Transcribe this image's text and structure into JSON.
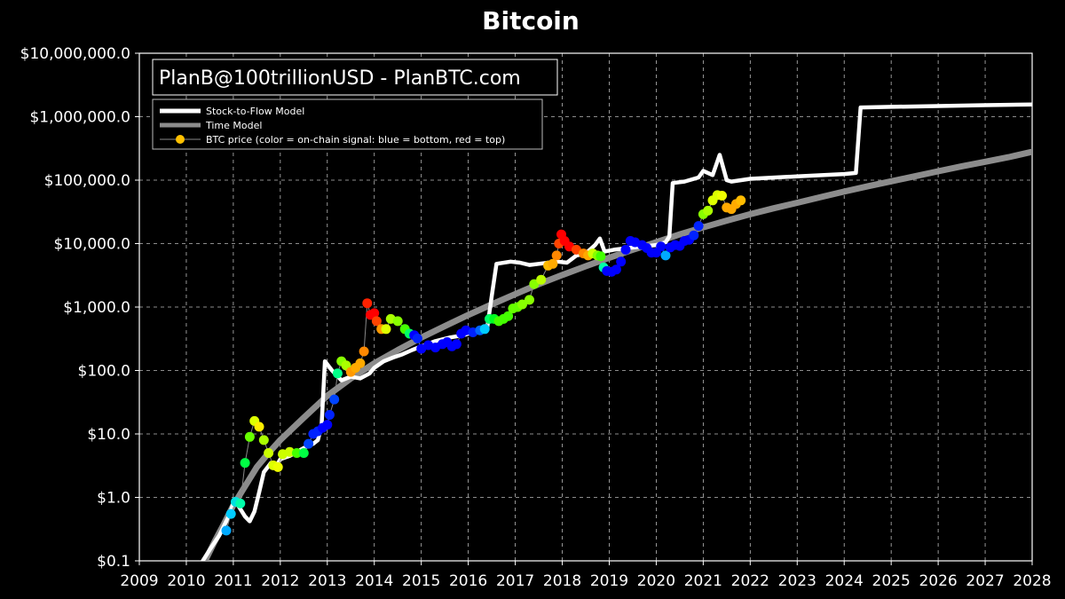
{
  "chart_data": {
    "type": "line",
    "title": "Bitcoin",
    "xlabel": "",
    "ylabel": "",
    "y_scale": "log",
    "xlim": [
      2009,
      2028
    ],
    "ylim": [
      0.1,
      10000000
    ],
    "x_ticks": [
      "2009",
      "2010",
      "2011",
      "2012",
      "2013",
      "2014",
      "2015",
      "2016",
      "2017",
      "2018",
      "2019",
      "2020",
      "2021",
      "2022",
      "2023",
      "2024",
      "2025",
      "2026",
      "2027",
      "2028"
    ],
    "y_ticks": [
      "$0.1",
      "$1.0",
      "$10.0",
      "$100.0",
      "$1,000.0",
      "$10,000.0",
      "$100,000.0",
      "$1,000,000.0",
      "$10,000,000.0"
    ],
    "grid": true,
    "legend_position": "top-left",
    "annotation": "PlanB@100trillionUSD - PlanBTC.com",
    "series": [
      {
        "name": "Stock-to-Flow Model",
        "color": "#ffffff",
        "points": [
          [
            2010.35,
            0.1
          ],
          [
            2010.5,
            0.15
          ],
          [
            2010.7,
            0.25
          ],
          [
            2010.9,
            0.5
          ],
          [
            2011.0,
            0.8
          ],
          [
            2011.1,
            0.75
          ],
          [
            2011.25,
            0.5
          ],
          [
            2011.35,
            0.42
          ],
          [
            2011.45,
            0.6
          ],
          [
            2011.55,
            1.2
          ],
          [
            2011.65,
            2.5
          ],
          [
            2011.8,
            3.5
          ],
          [
            2011.9,
            3.0
          ],
          [
            2012.0,
            4.0
          ],
          [
            2012.2,
            4.5
          ],
          [
            2012.5,
            6
          ],
          [
            2012.7,
            7
          ],
          [
            2012.8,
            8
          ],
          [
            2012.88,
            14
          ],
          [
            2012.95,
            140
          ],
          [
            2013.1,
            100
          ],
          [
            2013.3,
            70
          ],
          [
            2013.5,
            80
          ],
          [
            2013.7,
            75
          ],
          [
            2013.9,
            90
          ],
          [
            2014.0,
            110
          ],
          [
            2014.2,
            140
          ],
          [
            2014.4,
            160
          ],
          [
            2014.6,
            180
          ],
          [
            2014.8,
            210
          ],
          [
            2015.0,
            240
          ],
          [
            2015.3,
            290
          ],
          [
            2015.6,
            330
          ],
          [
            2015.9,
            360
          ],
          [
            2016.1,
            400
          ],
          [
            2016.4,
            450
          ],
          [
            2016.5,
            1500
          ],
          [
            2016.6,
            4800
          ],
          [
            2016.9,
            5200
          ],
          [
            2017.1,
            5000
          ],
          [
            2017.3,
            4600
          ],
          [
            2017.5,
            4800
          ],
          [
            2017.7,
            5000
          ],
          [
            2017.9,
            5200
          ],
          [
            2018.1,
            5000
          ],
          [
            2018.3,
            6500
          ],
          [
            2018.5,
            7000
          ],
          [
            2018.7,
            9500
          ],
          [
            2018.8,
            12000
          ],
          [
            2018.9,
            7500
          ],
          [
            2019.1,
            8000
          ],
          [
            2019.4,
            8500
          ],
          [
            2019.7,
            9000
          ],
          [
            2020.0,
            9500
          ],
          [
            2020.2,
            10500
          ],
          [
            2020.28,
            13000
          ],
          [
            2020.35,
            90000
          ],
          [
            2020.6,
            95000
          ],
          [
            2020.9,
            110000
          ],
          [
            2021.0,
            140000
          ],
          [
            2021.2,
            120000
          ],
          [
            2021.35,
            250000
          ],
          [
            2021.5,
            100000
          ],
          [
            2021.6,
            95000
          ],
          [
            2022.0,
            105000
          ],
          [
            2023.0,
            115000
          ],
          [
            2024.0,
            125000
          ],
          [
            2024.25,
            130000
          ],
          [
            2024.35,
            1400000
          ],
          [
            2025.0,
            1430000
          ],
          [
            2026.0,
            1470000
          ],
          [
            2027.0,
            1520000
          ],
          [
            2028.0,
            1560000
          ]
        ]
      },
      {
        "name": "Time Model",
        "color": "#8c8c8c",
        "points": [
          [
            2010.4,
            0.1
          ],
          [
            2010.6,
            0.2
          ],
          [
            2010.8,
            0.38
          ],
          [
            2011.0,
            0.75
          ],
          [
            2011.25,
            1.5
          ],
          [
            2011.5,
            3
          ],
          [
            2011.75,
            5
          ],
          [
            2012.0,
            8
          ],
          [
            2012.5,
            18
          ],
          [
            2013.0,
            40
          ],
          [
            2013.5,
            75
          ],
          [
            2014.0,
            130
          ],
          [
            2014.5,
            210
          ],
          [
            2015.0,
            330
          ],
          [
            2015.5,
            500
          ],
          [
            2016.0,
            750
          ],
          [
            2016.5,
            1100
          ],
          [
            2017.0,
            1600
          ],
          [
            2017.5,
            2300
          ],
          [
            2018.0,
            3200
          ],
          [
            2018.5,
            4400
          ],
          [
            2019.0,
            6000
          ],
          [
            2019.5,
            8000
          ],
          [
            2020.0,
            10500
          ],
          [
            2020.5,
            14000
          ],
          [
            2021.0,
            18000
          ],
          [
            2021.5,
            23000
          ],
          [
            2022.0,
            29000
          ],
          [
            2022.5,
            36000
          ],
          [
            2023.0,
            44000
          ],
          [
            2023.5,
            54000
          ],
          [
            2024.0,
            66000
          ],
          [
            2024.5,
            80000
          ],
          [
            2025.0,
            96000
          ],
          [
            2025.5,
            115000
          ],
          [
            2026.0,
            138000
          ],
          [
            2026.5,
            165000
          ],
          [
            2027.0,
            195000
          ],
          [
            2027.5,
            230000
          ],
          [
            2028.0,
            280000
          ]
        ]
      },
      {
        "name": "BTC price (color = on-chain signal: blue = bottom, red = top)",
        "type": "scatter",
        "marker_color_legend": "#ffc000",
        "points": [
          [
            2010.85,
            0.3,
            "#00aaff"
          ],
          [
            2010.95,
            0.55,
            "#00ccff"
          ],
          [
            2011.05,
            0.85,
            "#00e0e0"
          ],
          [
            2011.15,
            0.8,
            "#00ffaa"
          ],
          [
            2011.25,
            3.5,
            "#00ff44"
          ],
          [
            2011.35,
            9,
            "#66ff00"
          ],
          [
            2011.45,
            16,
            "#ddff00"
          ],
          [
            2011.55,
            13,
            "#ffee00"
          ],
          [
            2011.65,
            8,
            "#aaff00"
          ],
          [
            2011.75,
            5,
            "#ccff00"
          ],
          [
            2011.85,
            3.2,
            "#ddff00"
          ],
          [
            2011.95,
            3,
            "#eeff00"
          ],
          [
            2012.05,
            4.8,
            "#ccff00"
          ],
          [
            2012.2,
            5.2,
            "#ccff00"
          ],
          [
            2012.35,
            5,
            "#44ff00"
          ],
          [
            2012.5,
            5,
            "#00ff44"
          ],
          [
            2012.6,
            7,
            "#0044ff"
          ],
          [
            2012.7,
            10,
            "#0022ff"
          ],
          [
            2012.8,
            11,
            "#0022ff"
          ],
          [
            2012.9,
            12.5,
            "#0000ff"
          ],
          [
            2013.0,
            14,
            "#0000ff"
          ],
          [
            2013.05,
            20,
            "#0022ff"
          ],
          [
            2013.15,
            35,
            "#0044ff"
          ],
          [
            2013.22,
            90,
            "#00ff88"
          ],
          [
            2013.3,
            140,
            "#88ff00"
          ],
          [
            2013.4,
            120,
            "#aaff00"
          ],
          [
            2013.5,
            95,
            "#ff9900"
          ],
          [
            2013.6,
            110,
            "#ffaa00"
          ],
          [
            2013.7,
            130,
            "#ffaa00"
          ],
          [
            2013.78,
            200,
            "#ff8800"
          ],
          [
            2013.85,
            1150,
            "#ff2200"
          ],
          [
            2013.92,
            750,
            "#ff0000"
          ],
          [
            2014.0,
            800,
            "#ff0000"
          ],
          [
            2014.05,
            600,
            "#ff4400"
          ],
          [
            2014.15,
            450,
            "#ff9900"
          ],
          [
            2014.25,
            450,
            "#ddff00"
          ],
          [
            2014.35,
            650,
            "#aaff00"
          ],
          [
            2014.5,
            600,
            "#88ff00"
          ],
          [
            2014.65,
            450,
            "#44ff00"
          ],
          [
            2014.75,
            380,
            "#00ff66"
          ],
          [
            2014.85,
            360,
            "#0000ff"
          ],
          [
            2014.92,
            320,
            "#0022ff"
          ],
          [
            2015.0,
            220,
            "#0000ff"
          ],
          [
            2015.15,
            250,
            "#0000ff"
          ],
          [
            2015.3,
            230,
            "#0000ff"
          ],
          [
            2015.45,
            260,
            "#0000ff"
          ],
          [
            2015.55,
            280,
            "#0000ff"
          ],
          [
            2015.65,
            240,
            "#0000ff"
          ],
          [
            2015.75,
            260,
            "#0000ff"
          ],
          [
            2015.85,
            380,
            "#0000ff"
          ],
          [
            2015.95,
            430,
            "#0000ff"
          ],
          [
            2016.1,
            400,
            "#0022ff"
          ],
          [
            2016.25,
            430,
            "#0066ff"
          ],
          [
            2016.35,
            450,
            "#00ccff"
          ],
          [
            2016.45,
            650,
            "#00ff66"
          ],
          [
            2016.55,
            650,
            "#00ff22"
          ],
          [
            2016.65,
            600,
            "#44ff00"
          ],
          [
            2016.75,
            650,
            "#44ff00"
          ],
          [
            2016.85,
            720,
            "#44ff00"
          ],
          [
            2016.95,
            950,
            "#66ff00"
          ],
          [
            2017.05,
            1000,
            "#66ff00"
          ],
          [
            2017.15,
            1100,
            "#88ff00"
          ],
          [
            2017.3,
            1300,
            "#88ff00"
          ],
          [
            2017.4,
            2300,
            "#88ff00"
          ],
          [
            2017.55,
            2700,
            "#bbff00"
          ],
          [
            2017.7,
            4500,
            "#ffbb00"
          ],
          [
            2017.8,
            4800,
            "#ffaa00"
          ],
          [
            2017.88,
            6500,
            "#ff8800"
          ],
          [
            2017.93,
            10000,
            "#ff4400"
          ],
          [
            2017.98,
            14000,
            "#ff0000"
          ],
          [
            2018.05,
            11000,
            "#ff0000"
          ],
          [
            2018.15,
            9000,
            "#ff0000"
          ],
          [
            2018.3,
            8000,
            "#ff4400"
          ],
          [
            2018.45,
            7000,
            "#ff8800"
          ],
          [
            2018.55,
            6500,
            "#ffaa00"
          ],
          [
            2018.65,
            7000,
            "#ccff00"
          ],
          [
            2018.75,
            6500,
            "#88ff00"
          ],
          [
            2018.82,
            6300,
            "#44ff00"
          ],
          [
            2018.88,
            4200,
            "#00ffaa"
          ],
          [
            2018.95,
            3700,
            "#0000ff"
          ],
          [
            2019.05,
            3600,
            "#0000ff"
          ],
          [
            2019.15,
            3900,
            "#0000ff"
          ],
          [
            2019.25,
            5200,
            "#0000ff"
          ],
          [
            2019.35,
            8000,
            "#0000ff"
          ],
          [
            2019.45,
            11000,
            "#0000ff"
          ],
          [
            2019.55,
            10500,
            "#0000ff"
          ],
          [
            2019.7,
            9500,
            "#0000ff"
          ],
          [
            2019.8,
            8500,
            "#0000ff"
          ],
          [
            2019.9,
            7200,
            "#0000ff"
          ],
          [
            2020.0,
            7200,
            "#0000ff"
          ],
          [
            2020.1,
            9000,
            "#0000ff"
          ],
          [
            2020.2,
            6500,
            "#00aaff"
          ],
          [
            2020.3,
            8700,
            "#0000ff"
          ],
          [
            2020.4,
            9500,
            "#0000ff"
          ],
          [
            2020.5,
            9200,
            "#0000ff"
          ],
          [
            2020.6,
            11000,
            "#0000ff"
          ],
          [
            2020.7,
            11500,
            "#0000ff"
          ],
          [
            2020.8,
            13500,
            "#0022ff"
          ],
          [
            2020.9,
            19000,
            "#0022ff"
          ],
          [
            2021.0,
            29000,
            "#88ff00"
          ],
          [
            2021.1,
            33000,
            "#aaff00"
          ],
          [
            2021.2,
            48000,
            "#ddff00"
          ],
          [
            2021.3,
            58000,
            "#ddff00"
          ],
          [
            2021.4,
            57000,
            "#eeff00"
          ],
          [
            2021.5,
            37000,
            "#ffaa00"
          ],
          [
            2021.6,
            35000,
            "#ffaa00"
          ],
          [
            2021.7,
            42000,
            "#ffaa00"
          ],
          [
            2021.8,
            48000,
            "#ffbb00"
          ]
        ]
      }
    ]
  },
  "colors": {
    "background": "#000000",
    "grid": "#bbbbbb",
    "axis": "#ffffff"
  }
}
